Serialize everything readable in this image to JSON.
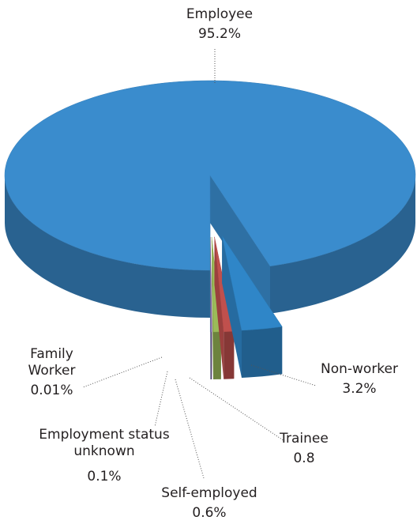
{
  "chart_data": {
    "type": "pie",
    "categories": [
      "Non-worker",
      "Trainee",
      "Self-employed",
      "Employment status unknown",
      "Family Worker",
      "Employee"
    ],
    "values": [
      3.2,
      0.8,
      0.6,
      0.1,
      0.01,
      95.2
    ],
    "value_labels": [
      "3.2%",
      "0.8",
      "0.6%",
      "0.1%",
      "0.01%",
      "95.2%"
    ],
    "colors": [
      "#2f86c8",
      "#c0504d",
      "#9bbb59",
      "#8064a2",
      "#4bacc6",
      "#3a8ccd"
    ]
  }
}
